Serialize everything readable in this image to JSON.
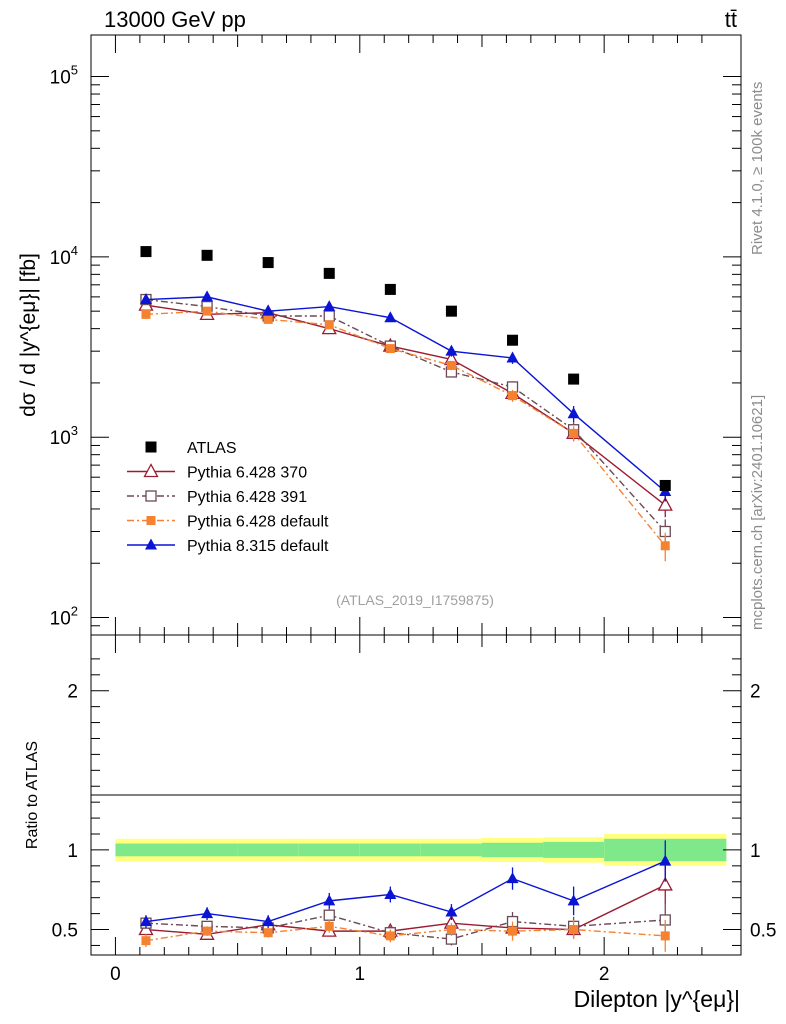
{
  "header": {
    "energy_label": "13000 GeV pp",
    "process_label": "tt̄"
  },
  "side_labels": {
    "rivet": "Rivet 4.1.0, ≥ 100k events",
    "mcplots": "mcplots.cern.ch [arXiv:2401.10621]"
  },
  "colors": {
    "atlas": "#000000",
    "py6_370": "#9b1b30",
    "py6_391": "#6b4a55",
    "py6_default": "#f58231",
    "py8_default": "#0a14d4",
    "band_outer": "#ffff80",
    "band_inner": "#7fe88a"
  },
  "chart_data": [
    {
      "type": "line",
      "panel": "main",
      "title": "",
      "ylabel": "dσ / d |y^{eμ}| [fb]",
      "yscale": "log",
      "ylim": [
        80,
        170000
      ],
      "xlim": [
        -0.1,
        2.56
      ],
      "ytick_labels": [
        "10^2",
        "10^3",
        "10^4",
        "10^5"
      ],
      "watermark": "(ATLAS_2019_I1759875)",
      "x": [
        0.125,
        0.375,
        0.625,
        0.875,
        1.125,
        1.375,
        1.625,
        1.875,
        2.25
      ],
      "series": [
        {
          "name": "ATLAS",
          "style": "data",
          "marker": "square-filled",
          "values": [
            10700,
            10200,
            9300,
            8100,
            6600,
            5000,
            3450,
            2100,
            540
          ]
        },
        {
          "name": "Pythia 6.428 370",
          "style": "solid",
          "marker": "triangle-open",
          "values": [
            5400,
            4800,
            4900,
            4000,
            3200,
            2700,
            1750,
            1050,
            420
          ],
          "errors": [
            300,
            250,
            250,
            220,
            180,
            160,
            130,
            100,
            60
          ]
        },
        {
          "name": "Pythia 6.428 391",
          "style": "dashdot",
          "marker": "square-open",
          "values": [
            5800,
            5300,
            4700,
            4700,
            3200,
            2300,
            1900,
            1100,
            300
          ],
          "errors": [
            300,
            260,
            240,
            240,
            180,
            150,
            140,
            110,
            50
          ]
        },
        {
          "name": "Pythia 6.428 default",
          "style": "dashdot",
          "marker": "square-filled-small",
          "values": [
            4800,
            5000,
            4500,
            4200,
            3100,
            2500,
            1700,
            1050,
            250
          ],
          "errors": [
            280,
            260,
            230,
            230,
            170,
            150,
            130,
            100,
            45
          ]
        },
        {
          "name": "Pythia 8.315 default",
          "style": "solid",
          "marker": "triangle-filled",
          "values": [
            5800,
            6000,
            5000,
            5300,
            4600,
            3000,
            2750,
            1350,
            500
          ],
          "errors": [
            320,
            320,
            280,
            280,
            250,
            200,
            200,
            140,
            60
          ]
        }
      ]
    },
    {
      "type": "line",
      "panel": "ratio",
      "ylabel": "Ratio to ATLAS",
      "xlabel": "Dilepton |y^{eμ}|",
      "ylim": [
        0.34,
        2.35
      ],
      "xlim": [
        -0.1,
        2.56
      ],
      "xtick_labels": [
        "0",
        "1",
        "2"
      ],
      "ytick_labels": [
        "0.5",
        "1",
        "2"
      ],
      "x": [
        0.125,
        0.375,
        0.625,
        0.875,
        1.125,
        1.375,
        1.625,
        1.875,
        2.25
      ],
      "band_edges": [
        0,
        0.25,
        0.5,
        0.75,
        1.0,
        1.25,
        1.5,
        1.75,
        2.0,
        2.5
      ],
      "band_outer": [
        0.07,
        0.07,
        0.07,
        0.07,
        0.07,
        0.07,
        0.075,
        0.08,
        0.1
      ],
      "band_inner": [
        0.04,
        0.04,
        0.04,
        0.04,
        0.04,
        0.04,
        0.045,
        0.05,
        0.07
      ],
      "series": [
        {
          "name": "Pythia 6.428 370",
          "values": [
            0.5,
            0.47,
            0.53,
            0.49,
            0.49,
            0.54,
            0.51,
            0.5,
            0.78
          ],
          "errors": [
            0.03,
            0.03,
            0.03,
            0.03,
            0.04,
            0.04,
            0.05,
            0.05,
            0.12
          ]
        },
        {
          "name": "Pythia 6.428 391",
          "values": [
            0.54,
            0.52,
            0.51,
            0.59,
            0.48,
            0.44,
            0.55,
            0.52,
            0.56
          ],
          "errors": [
            0.03,
            0.03,
            0.03,
            0.04,
            0.04,
            0.04,
            0.06,
            0.06,
            0.1
          ]
        },
        {
          "name": "Pythia 6.428 default",
          "values": [
            0.43,
            0.49,
            0.48,
            0.52,
            0.46,
            0.5,
            0.49,
            0.5,
            0.46
          ],
          "errors": [
            0.04,
            0.03,
            0.03,
            0.04,
            0.04,
            0.04,
            0.06,
            0.06,
            0.1
          ]
        },
        {
          "name": "Pythia 8.315 default",
          "values": [
            0.55,
            0.6,
            0.55,
            0.68,
            0.72,
            0.61,
            0.82,
            0.68,
            0.93
          ],
          "errors": [
            0.04,
            0.04,
            0.04,
            0.05,
            0.05,
            0.05,
            0.07,
            0.09,
            0.13
          ]
        }
      ]
    }
  ]
}
